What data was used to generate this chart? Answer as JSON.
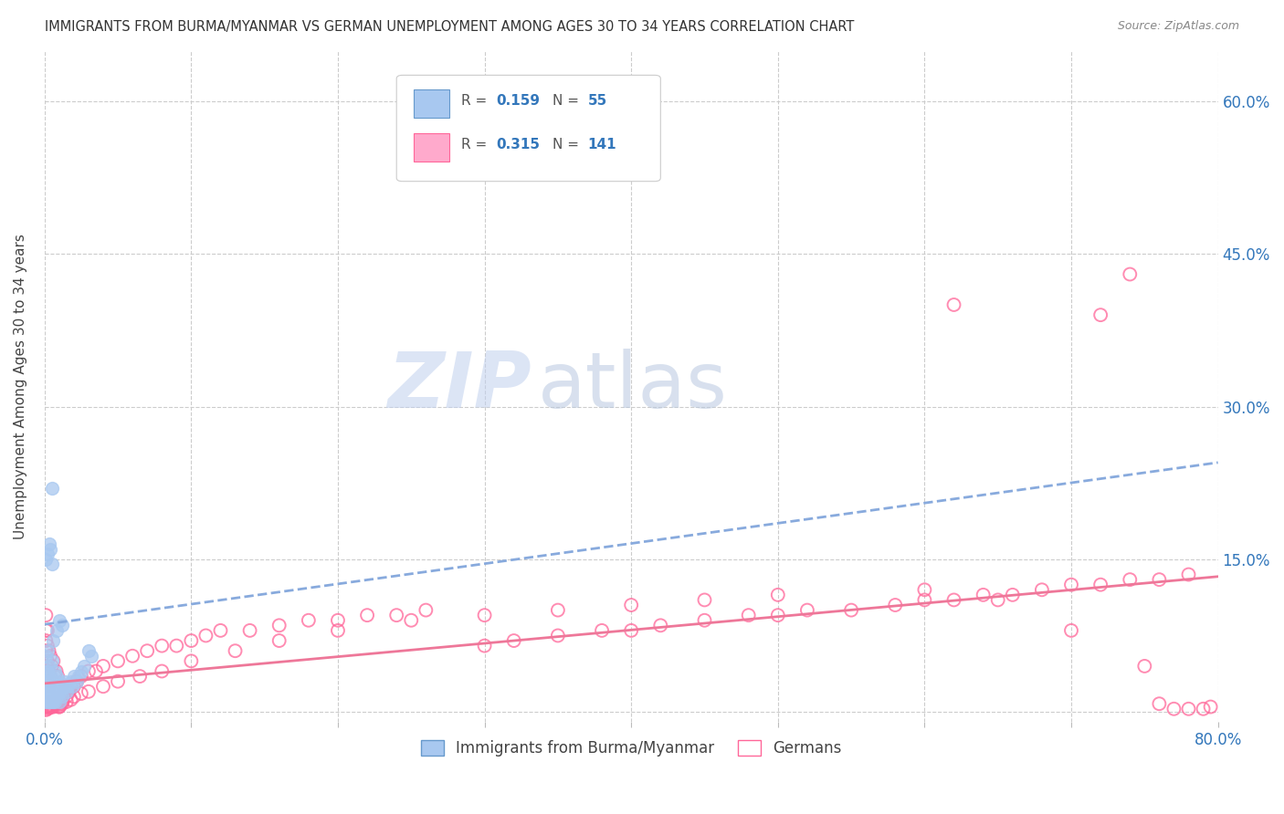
{
  "title": "IMMIGRANTS FROM BURMA/MYANMAR VS GERMAN UNEMPLOYMENT AMONG AGES 30 TO 34 YEARS CORRELATION CHART",
  "source": "Source: ZipAtlas.com",
  "ylabel": "Unemployment Among Ages 30 to 34 years",
  "xlim": [
    0,
    0.8
  ],
  "ylim": [
    -0.01,
    0.65
  ],
  "yticks_right": [
    0.0,
    0.15,
    0.3,
    0.45,
    0.6
  ],
  "yticklabels_right": [
    "",
    "15.0%",
    "30.0%",
    "45.0%",
    "60.0%"
  ],
  "series1_label": "Immigrants from Burma/Myanmar",
  "series2_label": "Germans",
  "color_blue_fill": "#A8C8F0",
  "color_blue_edge": "#6699CC",
  "color_pink_fill": "#FFAACC",
  "color_pink_edge": "#FF6699",
  "color_blue_line": "#88AADD",
  "color_pink_line": "#EE7799",
  "color_blue_text": "#3377BB",
  "color_gray_text": "#555555",
  "watermark_zip_color": "#BBCCEE",
  "watermark_atlas_color": "#AABBDD",
  "background_color": "#FFFFFF",
  "blue_trend_x0": 0.0,
  "blue_trend_y0": 0.086,
  "blue_trend_x1": 0.8,
  "blue_trend_y1": 0.245,
  "pink_trend_x0": 0.0,
  "pink_trend_y0": 0.028,
  "pink_trend_x1": 0.8,
  "pink_trend_y1": 0.133,
  "blue_x": [
    0.001,
    0.001,
    0.001,
    0.001,
    0.001,
    0.002,
    0.002,
    0.002,
    0.002,
    0.002,
    0.003,
    0.003,
    0.003,
    0.003,
    0.004,
    0.004,
    0.004,
    0.005,
    0.005,
    0.005,
    0.006,
    0.006,
    0.007,
    0.007,
    0.007,
    0.008,
    0.008,
    0.009,
    0.01,
    0.01,
    0.011,
    0.012,
    0.013,
    0.014,
    0.015,
    0.016,
    0.018,
    0.019,
    0.02,
    0.022,
    0.023,
    0.025,
    0.027,
    0.03,
    0.032,
    0.001,
    0.002,
    0.003,
    0.004,
    0.005,
    0.006,
    0.008,
    0.01,
    0.012,
    0.005
  ],
  "blue_y": [
    0.01,
    0.02,
    0.03,
    0.04,
    0.055,
    0.01,
    0.02,
    0.03,
    0.04,
    0.06,
    0.01,
    0.015,
    0.025,
    0.045,
    0.01,
    0.02,
    0.035,
    0.01,
    0.025,
    0.05,
    0.01,
    0.03,
    0.01,
    0.02,
    0.04,
    0.015,
    0.035,
    0.02,
    0.01,
    0.03,
    0.02,
    0.015,
    0.025,
    0.03,
    0.02,
    0.025,
    0.03,
    0.025,
    0.035,
    0.03,
    0.035,
    0.04,
    0.045,
    0.06,
    0.055,
    0.15,
    0.155,
    0.165,
    0.16,
    0.145,
    0.07,
    0.08,
    0.09,
    0.085,
    0.22
  ],
  "pink_x": [
    0.001,
    0.001,
    0.001,
    0.001,
    0.001,
    0.001,
    0.001,
    0.001,
    0.001,
    0.002,
    0.002,
    0.002,
    0.002,
    0.002,
    0.002,
    0.002,
    0.003,
    0.003,
    0.003,
    0.003,
    0.003,
    0.004,
    0.004,
    0.004,
    0.004,
    0.005,
    0.005,
    0.005,
    0.006,
    0.006,
    0.006,
    0.007,
    0.007,
    0.008,
    0.008,
    0.009,
    0.009,
    0.01,
    0.01,
    0.011,
    0.012,
    0.013,
    0.014,
    0.015,
    0.016,
    0.017,
    0.018,
    0.02,
    0.022,
    0.025,
    0.03,
    0.035,
    0.04,
    0.05,
    0.06,
    0.07,
    0.08,
    0.09,
    0.1,
    0.11,
    0.12,
    0.14,
    0.16,
    0.18,
    0.2,
    0.22,
    0.24,
    0.26,
    0.3,
    0.32,
    0.35,
    0.38,
    0.4,
    0.42,
    0.45,
    0.48,
    0.5,
    0.52,
    0.55,
    0.58,
    0.6,
    0.62,
    0.64,
    0.66,
    0.68,
    0.7,
    0.72,
    0.74,
    0.76,
    0.78,
    0.79,
    0.795,
    0.001,
    0.002,
    0.003,
    0.004,
    0.005,
    0.006,
    0.007,
    0.008,
    0.009,
    0.01,
    0.012,
    0.015,
    0.018,
    0.02,
    0.025,
    0.03,
    0.04,
    0.05,
    0.065,
    0.08,
    0.1,
    0.13,
    0.16,
    0.2,
    0.25,
    0.3,
    0.35,
    0.4,
    0.45,
    0.5,
    0.6,
    0.65,
    0.7,
    0.75,
    0.76,
    0.77,
    0.78,
    0.62,
    0.72,
    0.74
  ],
  "pink_y": [
    0.005,
    0.01,
    0.02,
    0.03,
    0.045,
    0.06,
    0.07,
    0.08,
    0.095,
    0.005,
    0.01,
    0.02,
    0.03,
    0.05,
    0.065,
    0.08,
    0.005,
    0.015,
    0.025,
    0.04,
    0.06,
    0.005,
    0.015,
    0.035,
    0.055,
    0.005,
    0.02,
    0.045,
    0.005,
    0.025,
    0.05,
    0.01,
    0.035,
    0.01,
    0.04,
    0.01,
    0.035,
    0.005,
    0.025,
    0.015,
    0.01,
    0.015,
    0.02,
    0.015,
    0.02,
    0.02,
    0.025,
    0.025,
    0.03,
    0.035,
    0.04,
    0.04,
    0.045,
    0.05,
    0.055,
    0.06,
    0.065,
    0.065,
    0.07,
    0.075,
    0.08,
    0.08,
    0.085,
    0.09,
    0.09,
    0.095,
    0.095,
    0.1,
    0.065,
    0.07,
    0.075,
    0.08,
    0.08,
    0.085,
    0.09,
    0.095,
    0.095,
    0.1,
    0.1,
    0.105,
    0.11,
    0.11,
    0.115,
    0.115,
    0.12,
    0.125,
    0.125,
    0.13,
    0.13,
    0.135,
    0.003,
    0.005,
    0.002,
    0.003,
    0.004,
    0.005,
    0.006,
    0.007,
    0.008,
    0.007,
    0.006,
    0.005,
    0.008,
    0.01,
    0.012,
    0.015,
    0.018,
    0.02,
    0.025,
    0.03,
    0.035,
    0.04,
    0.05,
    0.06,
    0.07,
    0.08,
    0.09,
    0.095,
    0.1,
    0.105,
    0.11,
    0.115,
    0.12,
    0.11,
    0.08,
    0.045,
    0.008,
    0.003,
    0.003,
    0.4,
    0.39,
    0.43
  ]
}
